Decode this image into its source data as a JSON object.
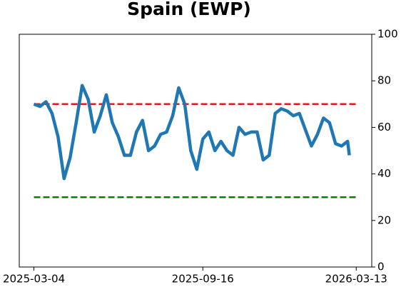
{
  "chart_data": {
    "type": "line",
    "title": "Spain (EWP)",
    "x": [
      "2025-03-04",
      "2025-03-11",
      "2025-03-18",
      "2025-03-25",
      "2025-04-01",
      "2025-04-08",
      "2025-04-15",
      "2025-04-22",
      "2025-04-29",
      "2025-05-06",
      "2025-05-13",
      "2025-05-20",
      "2025-05-27",
      "2025-06-03",
      "2025-06-10",
      "2025-06-17",
      "2025-06-24",
      "2025-07-01",
      "2025-07-08",
      "2025-07-15",
      "2025-07-22",
      "2025-07-29",
      "2025-08-05",
      "2025-08-12",
      "2025-08-19",
      "2025-08-26",
      "2025-09-02",
      "2025-09-09",
      "2025-09-16",
      "2025-09-23",
      "2025-09-30",
      "2025-10-07",
      "2025-10-14",
      "2025-10-21",
      "2025-10-28",
      "2025-11-04",
      "2025-11-11",
      "2025-11-18",
      "2025-11-25",
      "2025-12-02",
      "2025-12-09",
      "2025-12-16",
      "2025-12-23",
      "2025-12-30",
      "2026-01-06",
      "2026-01-13",
      "2026-01-20",
      "2026-01-27",
      "2026-02-03",
      "2026-02-10",
      "2026-02-17",
      "2026-02-24",
      "2026-03-03",
      "2026-03-05"
    ],
    "series": [
      {
        "color": "#1f77b4",
        "values": [
          70,
          69,
          71,
          66,
          56,
          38,
          47,
          62,
          78,
          72,
          58,
          65,
          74,
          62,
          56,
          48,
          48,
          58,
          63,
          50,
          52,
          57,
          58,
          65,
          77,
          70,
          50,
          42,
          55,
          58,
          50,
          54,
          50,
          48,
          60,
          57,
          58,
          58,
          46,
          48,
          66,
          68,
          67,
          65,
          66,
          59,
          52,
          57,
          64,
          62,
          53,
          52,
          54,
          48
        ]
      }
    ],
    "reference_lines": [
      {
        "value": 70,
        "color": "#e41a1c"
      },
      {
        "value": 30,
        "color": "#008000"
      }
    ],
    "xlim": [
      "2025-02-15",
      "2026-03-31"
    ],
    "xticks": [
      "2025-03-04",
      "2025-09-16",
      "2026-03-13"
    ],
    "ylim": [
      0,
      100
    ],
    "yticks": [
      0,
      20,
      40,
      60,
      80,
      100
    ],
    "y_axis_side": "right"
  }
}
